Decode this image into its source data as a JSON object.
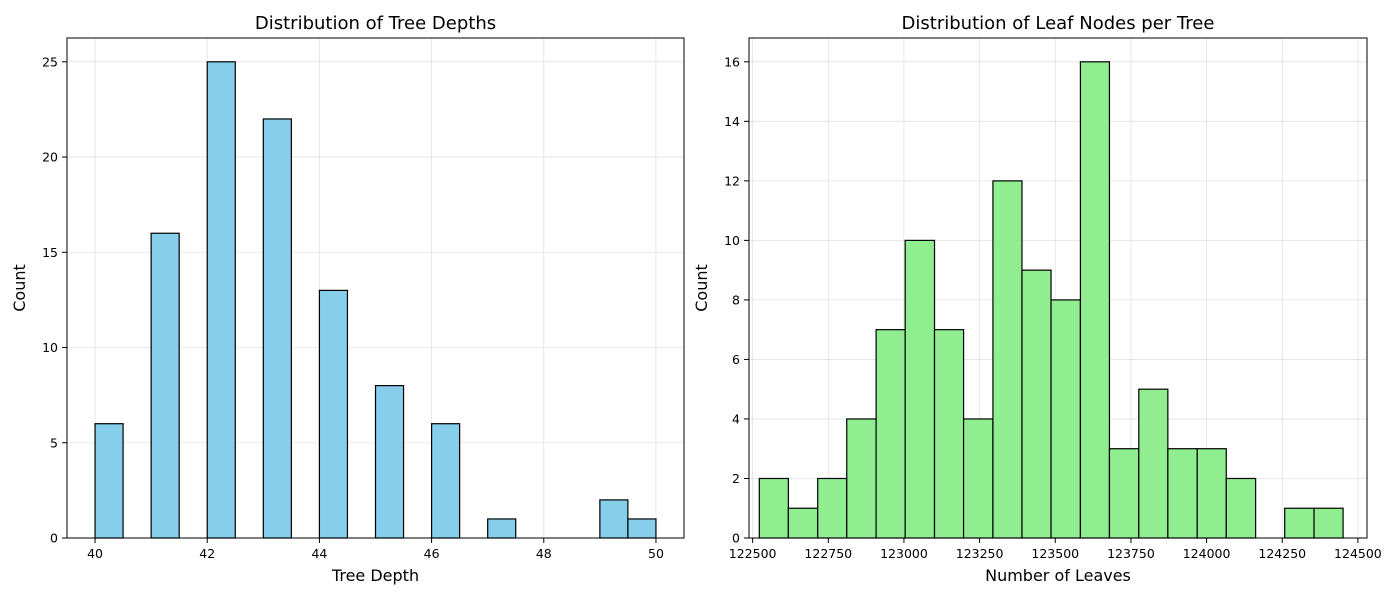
{
  "chart_data": [
    {
      "type": "bar",
      "title": "Distribution of Tree Depths",
      "xlabel": "Tree Depth",
      "ylabel": "Count",
      "xlim": [
        39.5,
        50.5
      ],
      "ylim": [
        0,
        26.25
      ],
      "xticks": [
        40,
        42,
        44,
        46,
        48,
        50
      ],
      "yticks": [
        0,
        5,
        10,
        15,
        20,
        25
      ],
      "grid": true,
      "bar_color": "#87ceeb",
      "edge_color": "#000000",
      "bins": [
        {
          "x0": 40.0,
          "x1": 40.5,
          "count": 6
        },
        {
          "x0": 40.5,
          "x1": 41.0,
          "count": 0
        },
        {
          "x0": 41.0,
          "x1": 41.5,
          "count": 16
        },
        {
          "x0": 41.5,
          "x1": 42.0,
          "count": 0
        },
        {
          "x0": 42.0,
          "x1": 42.5,
          "count": 25
        },
        {
          "x0": 42.5,
          "x1": 43.0,
          "count": 0
        },
        {
          "x0": 43.0,
          "x1": 43.5,
          "count": 22
        },
        {
          "x0": 43.5,
          "x1": 44.0,
          "count": 0
        },
        {
          "x0": 44.0,
          "x1": 44.5,
          "count": 13
        },
        {
          "x0": 44.5,
          "x1": 45.0,
          "count": 0
        },
        {
          "x0": 45.0,
          "x1": 45.5,
          "count": 8
        },
        {
          "x0": 45.5,
          "x1": 46.0,
          "count": 0
        },
        {
          "x0": 46.0,
          "x1": 46.5,
          "count": 6
        },
        {
          "x0": 46.5,
          "x1": 47.0,
          "count": 0
        },
        {
          "x0": 47.0,
          "x1": 47.5,
          "count": 1
        },
        {
          "x0": 47.5,
          "x1": 48.0,
          "count": 0
        },
        {
          "x0": 48.0,
          "x1": 48.5,
          "count": 0
        },
        {
          "x0": 48.5,
          "x1": 49.0,
          "count": 0
        },
        {
          "x0": 49.0,
          "x1": 49.5,
          "count": 2
        },
        {
          "x0": 49.5,
          "x1": 50.0,
          "count": 1
        }
      ]
    },
    {
      "type": "bar",
      "title": "Distribution of Leaf Nodes per Tree",
      "xlabel": "Number of Leaves",
      "ylabel": "Count",
      "xlim": [
        122488,
        124530
      ],
      "ylim": [
        0,
        16.8
      ],
      "xticks": [
        122500,
        122750,
        123000,
        123250,
        123500,
        123750,
        124000,
        124250,
        124500
      ],
      "yticks": [
        0,
        2,
        4,
        6,
        8,
        10,
        12,
        14,
        16
      ],
      "grid": true,
      "bar_color": "#90ee90",
      "edge_color": "#000000",
      "bins": [
        {
          "x0": 122522,
          "x1": 122618,
          "count": 2
        },
        {
          "x0": 122618,
          "x1": 122715,
          "count": 1
        },
        {
          "x0": 122715,
          "x1": 122811,
          "count": 2
        },
        {
          "x0": 122811,
          "x1": 122908,
          "count": 4
        },
        {
          "x0": 122908,
          "x1": 123004,
          "count": 7
        },
        {
          "x0": 123004,
          "x1": 123101,
          "count": 10
        },
        {
          "x0": 123101,
          "x1": 123197,
          "count": 7
        },
        {
          "x0": 123197,
          "x1": 123294,
          "count": 4
        },
        {
          "x0": 123294,
          "x1": 123390,
          "count": 12
        },
        {
          "x0": 123390,
          "x1": 123486,
          "count": 9
        },
        {
          "x0": 123486,
          "x1": 123583,
          "count": 8
        },
        {
          "x0": 123583,
          "x1": 123679,
          "count": 16
        },
        {
          "x0": 123679,
          "x1": 123776,
          "count": 3
        },
        {
          "x0": 123776,
          "x1": 123872,
          "count": 5
        },
        {
          "x0": 123872,
          "x1": 123969,
          "count": 3
        },
        {
          "x0": 123969,
          "x1": 124065,
          "count": 3
        },
        {
          "x0": 124065,
          "x1": 124162,
          "count": 2
        },
        {
          "x0": 124162,
          "x1": 124258,
          "count": 0
        },
        {
          "x0": 124258,
          "x1": 124355,
          "count": 1
        },
        {
          "x0": 124355,
          "x1": 124451,
          "count": 1
        }
      ]
    }
  ]
}
